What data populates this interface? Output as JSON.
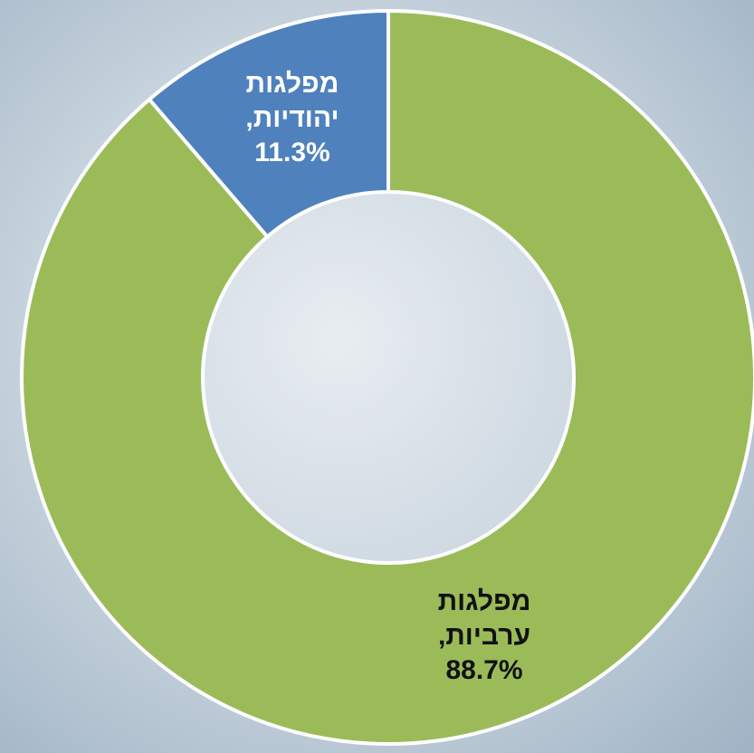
{
  "chart_data": {
    "type": "donut",
    "categories": [
      "מפלגות ערביות,",
      "מפלגות יהודיות,"
    ],
    "values": [
      88.7,
      11.3
    ],
    "value_labels": [
      "88.7%",
      "11.3%"
    ],
    "colors": [
      "#9bbb59",
      "#4f81bd"
    ],
    "label_colors": [
      "#111111",
      "#ffffff"
    ]
  }
}
